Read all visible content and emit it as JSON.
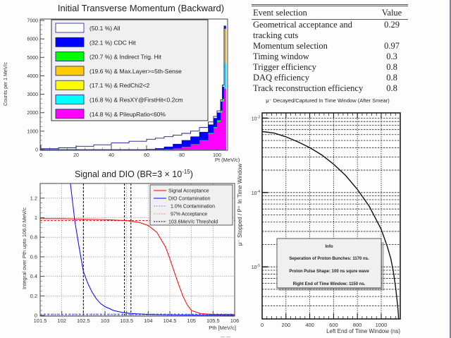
{
  "colors": {
    "all": "#ffffff",
    "cdc": "#0000ff",
    "indirect_trig": "#00ff00",
    "max_layer": "#ffcc00",
    "redchi2": "#ffff00",
    "resxy": "#00ffff",
    "pileup": "#ff00ff",
    "signal": "#ff0000",
    "dio": "#0000ff",
    "legend_bg": "#f0f0f0"
  },
  "chart_data": [
    {
      "type": "bar",
      "title": "Initial Transverse Momentum (Backward)",
      "xlabel": "Pt (MeV/c)",
      "ylabel": "Counts per 1 MeV/c",
      "xlim": [
        0,
        106
      ],
      "ylim": [
        0,
        7000
      ],
      "xticks": [
        "0",
        "20",
        "40",
        "60",
        "80",
        "100"
      ],
      "yticks": [
        "0",
        "1000",
        "2000",
        "3000",
        "4000",
        "5000",
        "6000",
        "7000"
      ],
      "legend_position": "top-left",
      "legend": [
        {
          "label": "(50.1 %) All",
          "color_key": "all"
        },
        {
          "label": "(32.1 %) CDC Hit",
          "color_key": "cdc"
        },
        {
          "label": "(20.7 %) & Indirect Trig. Hit",
          "color_key": "indirect_trig"
        },
        {
          "label": "(19.6 %) & Max.Layer>=5th-Sense",
          "color_key": "max_layer"
        },
        {
          "label": "(17.1 %) & RedChi2<2",
          "color_key": "redchi2"
        },
        {
          "label": "(16.8 %) & ResXY@FirstHit<0.2cm",
          "color_key": "resxy"
        },
        {
          "label": "(14.8 %) & PileupRatio<60%",
          "color_key": "pileup"
        }
      ],
      "x": [
        0,
        10,
        20,
        30,
        40,
        50,
        60,
        65,
        70,
        75,
        80,
        85,
        90,
        95,
        98,
        100,
        102,
        103,
        104,
        105
      ],
      "series": [
        {
          "name": "All",
          "values": [
            50,
            100,
            180,
            260,
            360,
            450,
            560,
            620,
            700,
            780,
            880,
            1000,
            1200,
            1500,
            1800,
            2100,
            2700,
            3500,
            6700,
            0
          ]
        },
        {
          "name": "CDC Hit",
          "values": [
            0,
            0,
            0,
            0,
            0,
            0,
            20,
            60,
            150,
            300,
            500,
            700,
            950,
            1350,
            1700,
            2000,
            2600,
            3400,
            6700,
            0
          ]
        },
        {
          "name": "& PileupRatio<60%",
          "values": [
            0,
            0,
            0,
            0,
            0,
            0,
            0,
            5,
            20,
            60,
            140,
            280,
            480,
            850,
            1150,
            1500,
            2000,
            2600,
            3300,
            0
          ]
        }
      ]
    },
    {
      "type": "line",
      "title": "Signal and DIO (BR=3 × 10",
      "title_exp": "-15",
      "title_close": ")",
      "xlabel": "Pth [MeV/c]",
      "ylabel": "Integral over Pth upto 106.0 MeV/c",
      "xlim": [
        101.5,
        106
      ],
      "ylim": [
        0,
        1.35
      ],
      "xticks": [
        "101.5",
        "102",
        "102.5",
        "103",
        "103.5",
        "104",
        "104.5",
        "105",
        "105.5",
        "106"
      ],
      "yticks": [
        "0",
        "0.2",
        "0.4",
        "0.6",
        "0.8",
        "1",
        "1.2"
      ],
      "grid": true,
      "legend_position": "top-right",
      "legend": [
        {
          "label": "Signal Acceptance",
          "style": "solid",
          "color_key": "signal"
        },
        {
          "label": "DIO Contamination",
          "style": "solid",
          "color_key": "dio"
        },
        {
          "label": "1.0% Contamination",
          "style": "dashed-blue"
        },
        {
          "label": "97% Acceptance",
          "style": "dashed-red"
        },
        {
          "label": "103.6MeV/c Threshold",
          "style": "dashed-black"
        }
      ],
      "series": [
        {
          "name": "Signal Acceptance",
          "x": [
            101.5,
            102,
            102.5,
            103,
            103.5,
            103.8,
            104,
            104.2,
            104.4,
            104.5,
            104.6,
            104.7,
            104.8,
            104.9,
            105,
            105.2,
            105.5,
            106
          ],
          "y": [
            0.99,
            0.99,
            0.985,
            0.98,
            0.97,
            0.95,
            0.92,
            0.85,
            0.7,
            0.58,
            0.45,
            0.32,
            0.2,
            0.11,
            0.05,
            0.02,
            0.01,
            0.01
          ]
        },
        {
          "name": "DIO Contamination",
          "x": [
            102.2,
            102.3,
            102.4,
            102.5,
            102.6,
            102.7,
            102.8,
            102.9,
            103,
            103.2,
            103.4,
            103.6,
            104,
            104.5,
            106
          ],
          "y": [
            1.35,
            0.97,
            0.7,
            0.45,
            0.33,
            0.24,
            0.17,
            0.12,
            0.09,
            0.05,
            0.03,
            0.02,
            0.01,
            0.005,
            0.0
          ]
        }
      ],
      "reference_lines": {
        "contamination_1pct": 0.01,
        "acceptance_97pct": 0.97,
        "threshold_x": 103.6,
        "extra_vertical_x": 102.5
      }
    },
    {
      "type": "line",
      "title": "μ⁻ Decayed/Captured In Time Window (After Smear)",
      "xlabel": "Left End of Time Window (ns)",
      "ylabel": "μ⁻ Stopped / P⁺ In Time Window",
      "xlim": [
        0,
        1160
      ],
      "ylim_log": [
        -5.7,
        -2.93
      ],
      "xticks": [
        "0",
        "200",
        "400",
        "600",
        "800",
        "1000"
      ],
      "yticks_exp": [
        "-3",
        "-4",
        "-5"
      ],
      "ytick_base": "10",
      "grid": true,
      "series": [
        {
          "name": "ratio",
          "x": [
            0,
            100,
            200,
            300,
            400,
            500,
            600,
            700,
            800,
            900,
            1000,
            1050,
            1080,
            1100,
            1120,
            1130,
            1140,
            1145
          ],
          "y": [
            0.00066,
            0.00063,
            0.00056,
            0.00048,
            0.0004,
            0.00032,
            0.00024,
            0.00017,
            0.00011,
            6.5e-05,
            3.2e-05,
            1.9e-05,
            1.3e-05,
            9e-06,
            5.5e-06,
            4e-06,
            2.8e-06,
            2.2e-06
          ]
        }
      ],
      "info_box": {
        "title": "Info",
        "lines": [
          "Seperation of Proton Bunches: 1170 ns.",
          "Proton Pulse Shape: 100 ns squre wave",
          "Right End of Time Window: 1150 ns."
        ]
      }
    }
  ],
  "table": {
    "header": [
      "Event selection",
      "Value"
    ],
    "rows": [
      {
        "label": "Geometrical acceptance and",
        "label2": "tracking cuts",
        "value": "0.29"
      },
      {
        "label": "Momentum selection",
        "value": "0.97"
      },
      {
        "label": "Timing window",
        "value": "0.3"
      },
      {
        "label": "Trigger efficiency",
        "value": "0.8"
      },
      {
        "label": "DAQ efficiency",
        "value": "0.8"
      },
      {
        "label": "Track reconstruction efficiency",
        "value": "0.8"
      }
    ]
  },
  "footer_mark": "— —"
}
